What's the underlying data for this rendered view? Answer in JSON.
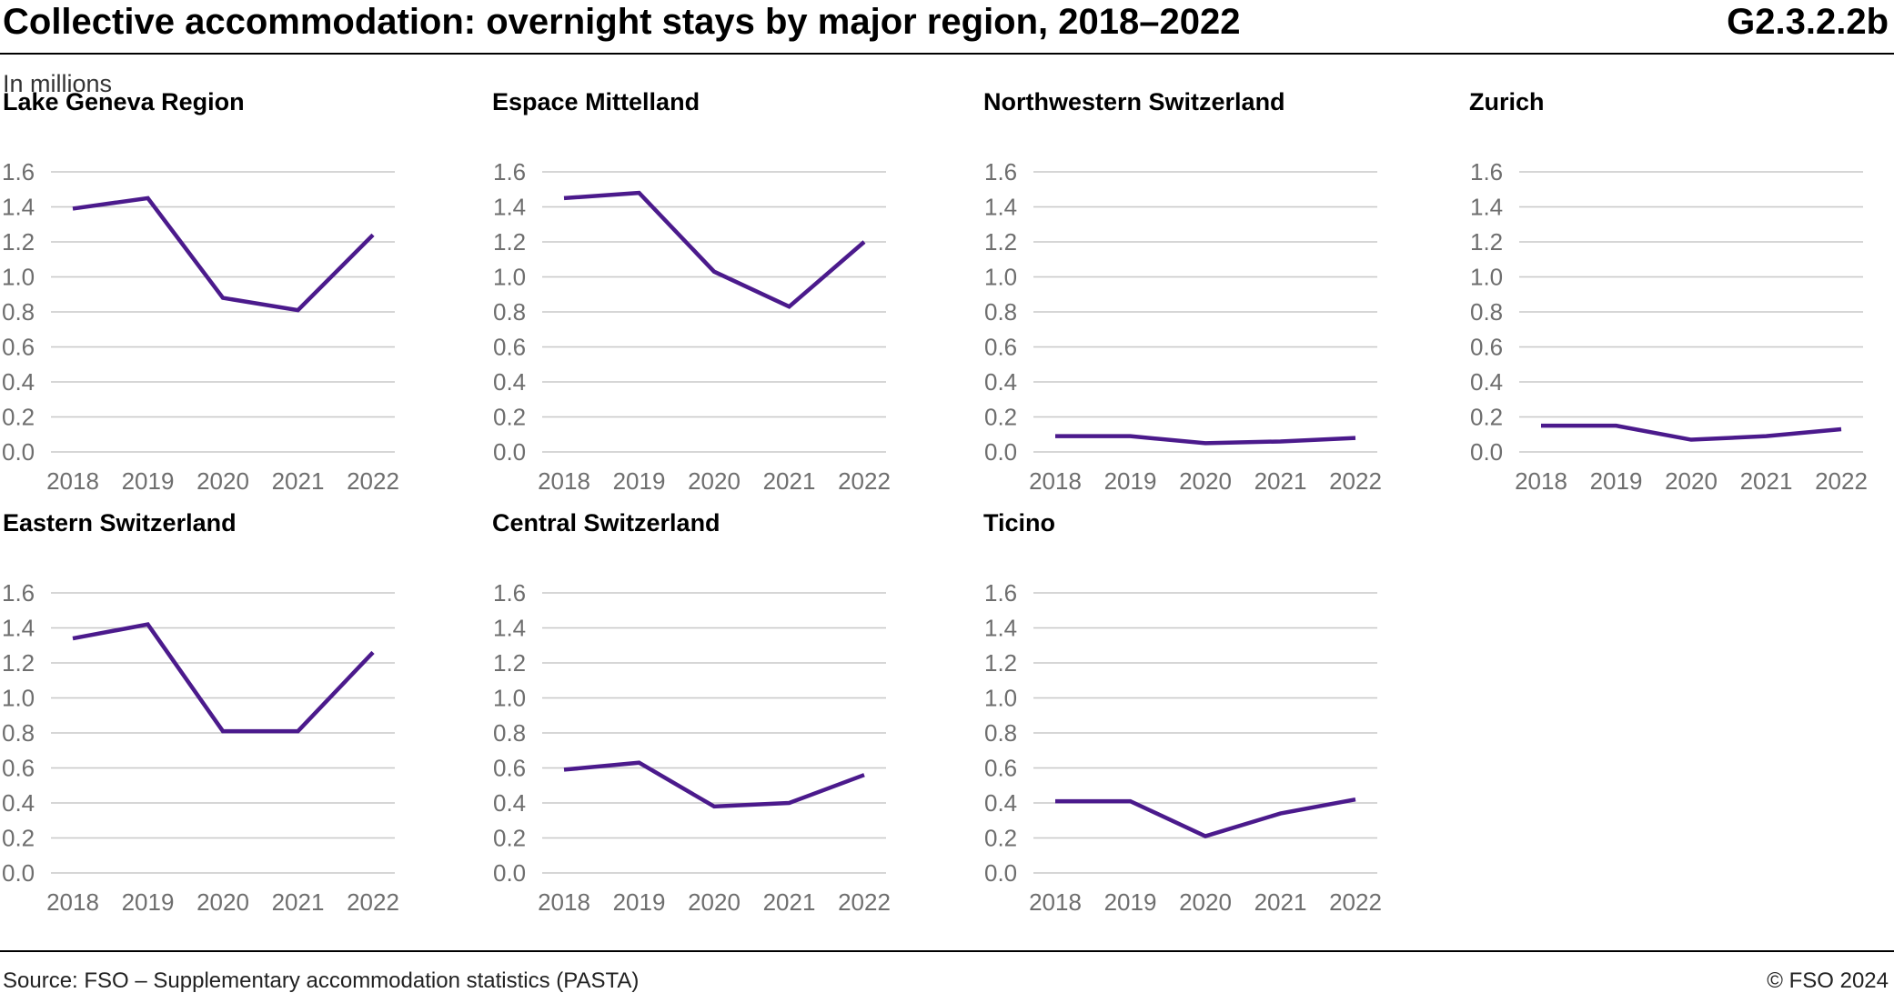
{
  "header": {
    "title": "Collective accommodation: overnight stays by major region, 2018–2022",
    "code": "G2.3.2.2b"
  },
  "subtitle": "In millions",
  "footer": {
    "source": "Source: FSO – Supplementary accommodation statistics (PASTA)",
    "copyright": "© FSO 2024"
  },
  "colors": {
    "line": "#4b1a8c",
    "grid": "#c8c8c8",
    "tick_text": "#6e6e6e"
  },
  "chart_data": [
    {
      "type": "line",
      "title": "Lake Geneva Region",
      "x": [
        "2018",
        "2019",
        "2020",
        "2021",
        "2022"
      ],
      "values": [
        1.39,
        1.45,
        0.88,
        0.81,
        1.24
      ],
      "y_ticks": [
        "1.6",
        "1.4",
        "1.2",
        "1.0",
        "0.8",
        "0.6",
        "0.4",
        "0.2",
        "0.0"
      ],
      "ylim": [
        0,
        1.6
      ],
      "grid": true
    },
    {
      "type": "line",
      "title": "Espace Mittelland",
      "x": [
        "2018",
        "2019",
        "2020",
        "2021",
        "2022"
      ],
      "values": [
        1.45,
        1.48,
        1.03,
        0.83,
        1.2
      ],
      "y_ticks": [
        "1.6",
        "1.4",
        "1.2",
        "1.0",
        "0.8",
        "0.6",
        "0.4",
        "0.2",
        "0.0"
      ],
      "ylim": [
        0,
        1.6
      ],
      "grid": true
    },
    {
      "type": "line",
      "title": "Northwestern Switzerland",
      "x": [
        "2018",
        "2019",
        "2020",
        "2021",
        "2022"
      ],
      "values": [
        0.09,
        0.09,
        0.05,
        0.06,
        0.08
      ],
      "y_ticks": [
        "1.6",
        "1.4",
        "1.2",
        "1.0",
        "0.8",
        "0.6",
        "0.4",
        "0.2",
        "0.0"
      ],
      "ylim": [
        0,
        1.6
      ],
      "grid": true
    },
    {
      "type": "line",
      "title": "Zurich",
      "x": [
        "2018",
        "2019",
        "2020",
        "2021",
        "2022"
      ],
      "values": [
        0.15,
        0.15,
        0.07,
        0.09,
        0.13
      ],
      "y_ticks": [
        "1.6",
        "1.4",
        "1.2",
        "1.0",
        "0.8",
        "0.6",
        "0.4",
        "0.2",
        "0.0"
      ],
      "ylim": [
        0,
        1.6
      ],
      "grid": true
    },
    {
      "type": "line",
      "title": "Eastern Switzerland",
      "x": [
        "2018",
        "2019",
        "2020",
        "2021",
        "2022"
      ],
      "values": [
        1.34,
        1.42,
        0.81,
        0.81,
        1.26
      ],
      "y_ticks": [
        "1.6",
        "1.4",
        "1.2",
        "1.0",
        "0.8",
        "0.6",
        "0.4",
        "0.2",
        "0.0"
      ],
      "ylim": [
        0,
        1.6
      ],
      "grid": true
    },
    {
      "type": "line",
      "title": "Central Switzerland",
      "x": [
        "2018",
        "2019",
        "2020",
        "2021",
        "2022"
      ],
      "values": [
        0.59,
        0.63,
        0.38,
        0.4,
        0.56
      ],
      "y_ticks": [
        "1.6",
        "1.4",
        "1.2",
        "1.0",
        "0.8",
        "0.6",
        "0.4",
        "0.2",
        "0.0"
      ],
      "ylim": [
        0,
        1.6
      ],
      "grid": true
    },
    {
      "type": "line",
      "title": "Ticino",
      "x": [
        "2018",
        "2019",
        "2020",
        "2021",
        "2022"
      ],
      "values": [
        0.41,
        0.41,
        0.21,
        0.34,
        0.42
      ],
      "y_ticks": [
        "1.6",
        "1.4",
        "1.2",
        "1.0",
        "0.8",
        "0.6",
        "0.4",
        "0.2",
        "0.0"
      ],
      "ylim": [
        0,
        1.6
      ],
      "grid": true
    }
  ]
}
